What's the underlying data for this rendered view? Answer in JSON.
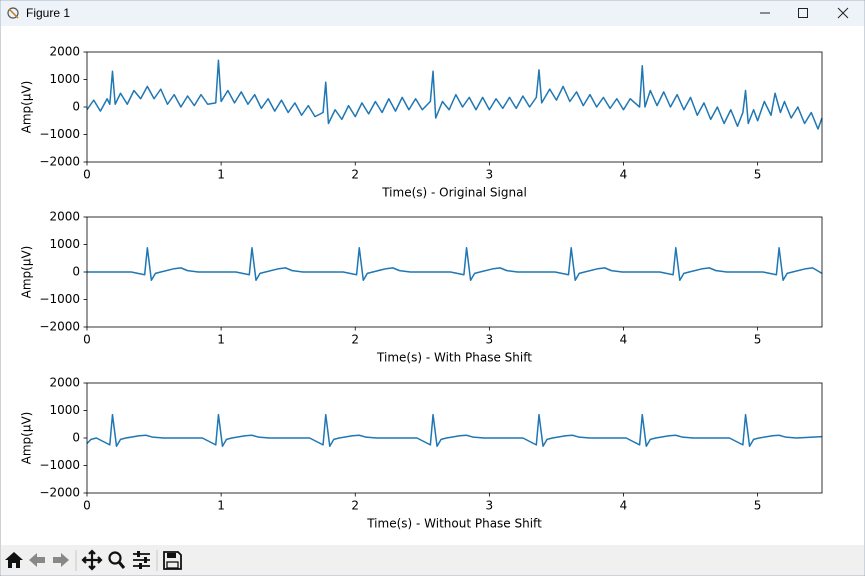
{
  "window": {
    "title": "Figure 1"
  },
  "chart_data": [
    {
      "type": "line",
      "xlabel": "Time(s) - Original Signal",
      "ylabel": "Amp(μV)",
      "color": "#1f77b4",
      "xlim": [
        0,
        5.48
      ],
      "ylim": [
        -2000,
        2000
      ],
      "xticks": [
        0,
        1,
        2,
        3,
        4,
        5
      ],
      "yticks": [
        {
          "value": -2000,
          "label": "−2000"
        },
        {
          "value": -1000,
          "label": "−1000"
        },
        0,
        1000,
        2000
      ],
      "x": [
        0,
        0.05,
        0.1,
        0.15,
        0.17,
        0.19,
        0.21,
        0.25,
        0.3,
        0.35,
        0.4,
        0.45,
        0.5,
        0.55,
        0.6,
        0.65,
        0.7,
        0.75,
        0.8,
        0.85,
        0.9,
        0.96,
        0.98,
        1.0,
        1.05,
        1.1,
        1.15,
        1.2,
        1.25,
        1.3,
        1.35,
        1.4,
        1.45,
        1.5,
        1.55,
        1.6,
        1.65,
        1.7,
        1.76,
        1.78,
        1.8,
        1.85,
        1.9,
        1.95,
        2.0,
        2.05,
        2.1,
        2.15,
        2.2,
        2.25,
        2.3,
        2.35,
        2.4,
        2.45,
        2.5,
        2.56,
        2.58,
        2.6,
        2.65,
        2.7,
        2.75,
        2.8,
        2.85,
        2.9,
        2.95,
        3.0,
        3.05,
        3.1,
        3.15,
        3.2,
        3.25,
        3.3,
        3.35,
        3.37,
        3.39,
        3.45,
        3.5,
        3.55,
        3.6,
        3.65,
        3.7,
        3.75,
        3.8,
        3.85,
        3.9,
        3.95,
        4.0,
        4.05,
        4.12,
        4.14,
        4.16,
        4.2,
        4.25,
        4.3,
        4.35,
        4.4,
        4.45,
        4.5,
        4.55,
        4.6,
        4.65,
        4.7,
        4.75,
        4.8,
        4.85,
        4.89,
        4.91,
        4.93,
        4.97,
        5.0,
        5.05,
        5.1,
        5.13,
        5.17,
        5.2,
        5.25,
        5.3,
        5.35,
        5.4,
        5.45,
        5.48
      ],
      "values": [
        -100,
        250,
        -150,
        300,
        100,
        1300,
        100,
        500,
        100,
        600,
        300,
        750,
        300,
        650,
        100,
        450,
        0,
        400,
        50,
        450,
        100,
        150,
        1700,
        200,
        600,
        150,
        550,
        100,
        450,
        -50,
        300,
        -150,
        250,
        -200,
        150,
        -300,
        50,
        -350,
        -200,
        900,
        -600,
        -100,
        -450,
        50,
        -350,
        150,
        -250,
        200,
        -200,
        300,
        -150,
        350,
        -100,
        300,
        -100,
        200,
        1300,
        -400,
        200,
        -100,
        450,
        0,
        350,
        -100,
        350,
        -100,
        300,
        -50,
        350,
        -50,
        400,
        0,
        350,
        1350,
        150,
        650,
        250,
        750,
        200,
        550,
        50,
        450,
        0,
        350,
        -50,
        300,
        -100,
        300,
        0,
        1500,
        0,
        600,
        50,
        550,
        0,
        450,
        -100,
        350,
        -300,
        150,
        -450,
        0,
        -600,
        -100,
        -700,
        -200,
        600,
        -600,
        -100,
        -500,
        200,
        -300,
        500,
        -200,
        200,
        -400,
        0,
        -600,
        -200,
        -800,
        -400
      ]
    },
    {
      "type": "line",
      "xlabel": "Time(s) - With Phase Shift",
      "ylabel": "Amp(μV)",
      "color": "#1f77b4",
      "xlim": [
        0,
        5.48
      ],
      "ylim": [
        -2000,
        2000
      ],
      "xticks": [
        0,
        1,
        2,
        3,
        4,
        5
      ],
      "yticks": [
        {
          "value": -2000,
          "label": "−2000"
        },
        {
          "value": -1000,
          "label": "−1000"
        },
        0,
        1000,
        2000
      ],
      "x": [
        0,
        0.33,
        0.43,
        0.45,
        0.48,
        0.51,
        0.55,
        0.65,
        0.7,
        0.75,
        0.83,
        1.11,
        1.21,
        1.23,
        1.26,
        1.29,
        1.33,
        1.43,
        1.48,
        1.53,
        1.61,
        1.91,
        2.01,
        2.03,
        2.06,
        2.09,
        2.13,
        2.23,
        2.28,
        2.33,
        2.41,
        2.71,
        2.81,
        2.83,
        2.86,
        2.89,
        2.93,
        3.03,
        3.08,
        3.13,
        3.21,
        3.49,
        3.59,
        3.61,
        3.64,
        3.67,
        3.71,
        3.81,
        3.86,
        3.91,
        3.99,
        4.27,
        4.37,
        4.39,
        4.42,
        4.45,
        4.49,
        4.59,
        4.64,
        4.69,
        4.77,
        5.04,
        5.14,
        5.16,
        5.19,
        5.22,
        5.26,
        5.36,
        5.41,
        5.48
      ],
      "values": [
        0,
        0,
        -100,
        880,
        -300,
        -50,
        0,
        120,
        150,
        50,
        0,
        0,
        -100,
        880,
        -300,
        -50,
        0,
        120,
        150,
        50,
        0,
        0,
        -100,
        880,
        -300,
        -50,
        0,
        120,
        150,
        50,
        0,
        0,
        -100,
        880,
        -300,
        -50,
        0,
        120,
        150,
        50,
        0,
        0,
        -100,
        880,
        -300,
        -50,
        0,
        120,
        150,
        50,
        0,
        0,
        -100,
        880,
        -300,
        -50,
        0,
        120,
        150,
        50,
        0,
        0,
        -100,
        880,
        -300,
        -50,
        0,
        120,
        150,
        -50
      ]
    },
    {
      "type": "line",
      "xlabel": "Time(s) - Without Phase Shift",
      "ylabel": "Amp(μV)",
      "color": "#1f77b4",
      "xlim": [
        0,
        5.48
      ],
      "ylim": [
        -2000,
        2000
      ],
      "xticks": [
        0,
        1,
        2,
        3,
        4,
        5
      ],
      "yticks": [
        {
          "value": -2000,
          "label": "−2000"
        },
        {
          "value": -1000,
          "label": "−1000"
        },
        0,
        1000,
        2000
      ],
      "x": [
        0,
        0.03,
        0.07,
        0.17,
        0.19,
        0.22,
        0.25,
        0.29,
        0.39,
        0.44,
        0.49,
        0.57,
        0.86,
        0.96,
        0.98,
        1.01,
        1.04,
        1.08,
        1.18,
        1.23,
        1.28,
        1.36,
        1.66,
        1.76,
        1.78,
        1.81,
        1.84,
        1.88,
        1.98,
        2.03,
        2.08,
        2.16,
        2.46,
        2.56,
        2.58,
        2.61,
        2.64,
        2.68,
        2.78,
        2.83,
        2.88,
        2.96,
        3.25,
        3.35,
        3.37,
        3.4,
        3.43,
        3.47,
        3.57,
        3.62,
        3.67,
        3.75,
        4.02,
        4.12,
        4.14,
        4.17,
        4.2,
        4.24,
        4.34,
        4.39,
        4.44,
        4.52,
        4.79,
        4.89,
        4.91,
        4.94,
        4.97,
        5.01,
        5.11,
        5.16,
        5.21,
        5.29,
        5.48
      ],
      "values": [
        -200,
        -50,
        0,
        -250,
        850,
        -300,
        -50,
        0,
        80,
        100,
        30,
        0,
        0,
        -250,
        850,
        -300,
        -50,
        0,
        80,
        100,
        30,
        0,
        0,
        -250,
        850,
        -300,
        -50,
        0,
        80,
        100,
        30,
        0,
        0,
        -250,
        850,
        -300,
        -50,
        0,
        80,
        100,
        30,
        0,
        0,
        -250,
        850,
        -300,
        -50,
        0,
        80,
        100,
        30,
        0,
        0,
        -250,
        850,
        -300,
        -50,
        0,
        80,
        100,
        30,
        0,
        0,
        -250,
        850,
        -300,
        -50,
        0,
        80,
        100,
        30,
        0,
        50
      ]
    }
  ]
}
